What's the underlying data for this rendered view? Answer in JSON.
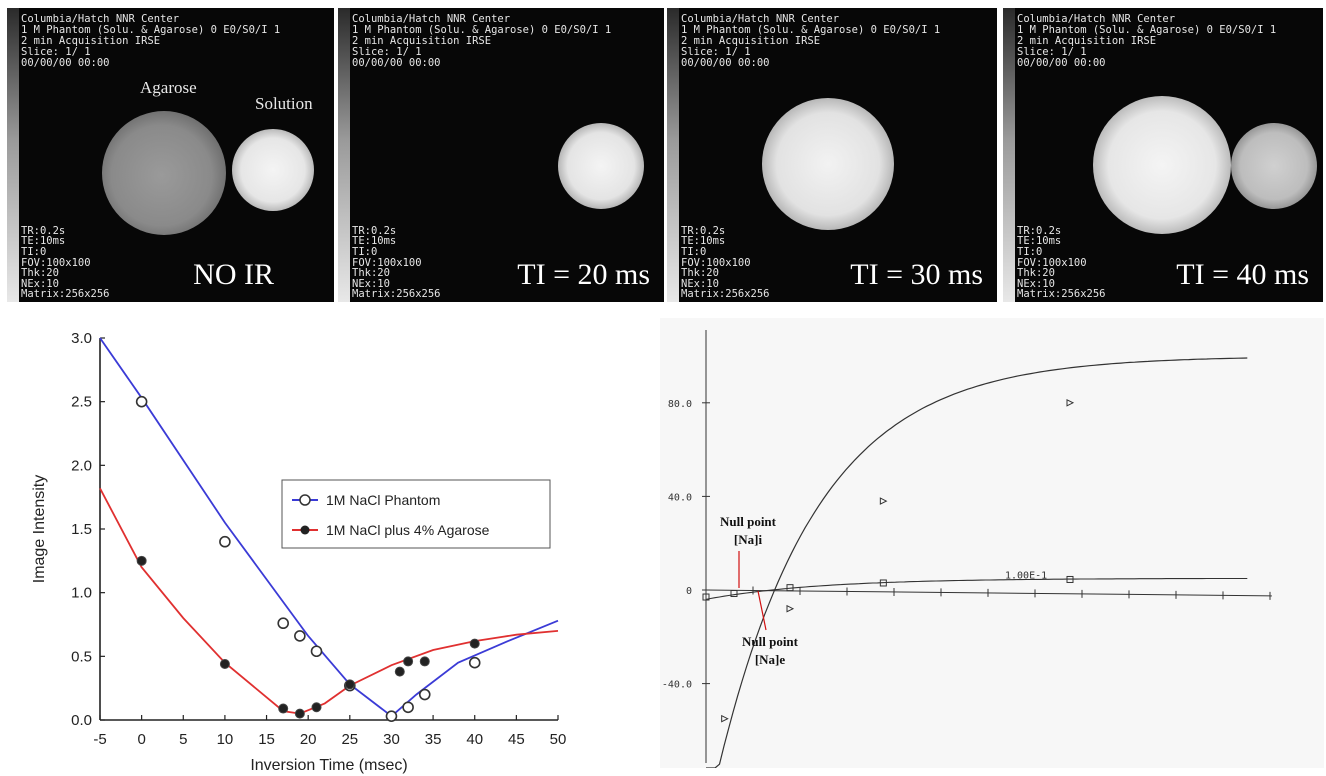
{
  "panels": [
    {
      "header": [
        "Columbia/Hatch NNR Center",
        "1 M Phantom (Solu. & Agarose) 0 E0/S0/I 1",
        "2 min Acquisition IRSE",
        "Slice: 1/ 1",
        "00/00/00 00:00"
      ],
      "params": [
        "TR:0.2s",
        "TE:10ms",
        "TI:0",
        "FOV:100x100",
        "Thk:20",
        "NEx:10",
        "Matrix:256x256"
      ],
      "caption": "NO IR",
      "label_agarose": "Agarose",
      "label_solution": "Solution"
    },
    {
      "header": [
        "Columbia/Hatch NNR Center",
        "1 M Phantom (Solu. & Agarose) 0 E0/S0/I 1",
        "2 min Acquisition IRSE",
        "Slice: 1/ 1",
        "00/00/00 00:00"
      ],
      "params": [
        "TR:0.2s",
        "TE:10ms",
        "TI:0",
        "FOV:100x100",
        "Thk:20",
        "NEx:10",
        "Matrix:256x256"
      ],
      "caption": "TI = 20 ms"
    },
    {
      "header": [
        "Columbia/Hatch NNR Center",
        "1 M Phantom (Solu. & Agarose) 0 E0/S0/I 1",
        "2 min Acquisition IRSE",
        "Slice: 1/ 1",
        "00/00/00 00:00"
      ],
      "params": [
        "TR:0.2s",
        "TE:10ms",
        "TI:0",
        "FOV:100x100",
        "Thk:20",
        "NEx:10",
        "Matrix:256x256"
      ],
      "caption": "TI = 30 ms"
    },
    {
      "header": [
        "Columbia/Hatch NNR Center",
        "1 M Phantom (Solu. & Agarose) 0 E0/S0/I 1",
        "2 min Acquisition IRSE",
        "Slice: 1/ 1",
        "00/00/00 00:00"
      ],
      "params": [
        "TR:0.2s",
        "TE:10ms",
        "TI:0",
        "FOV:100x100",
        "Thk:20",
        "NEx:10",
        "Matrix:256x256"
      ],
      "caption": "TI = 40 ms"
    }
  ],
  "chart_data": [
    {
      "type": "line",
      "title": "",
      "xlabel": "Inversion Time (msec)",
      "ylabel": "Image Intensity",
      "xlim": [
        -5,
        50
      ],
      "ylim": [
        0,
        3.0
      ],
      "xticks": [
        "-5",
        "0",
        "5",
        "10",
        "15",
        "20",
        "25",
        "30",
        "35",
        "40",
        "45",
        "50"
      ],
      "yticks": [
        "0.0",
        "0.5",
        "1.0",
        "1.5",
        "2.0",
        "2.5",
        "3.0"
      ],
      "legend_position": "center-right",
      "series": [
        {
          "name": "1M NaCl Phantom",
          "color": "#3b3bd6",
          "marker": "open-circle",
          "points": [
            [
              0,
              2.5
            ],
            [
              10,
              1.4
            ],
            [
              17,
              0.76
            ],
            [
              19,
              0.66
            ],
            [
              21,
              0.54
            ],
            [
              25,
              0.27
            ],
            [
              30,
              0.03
            ],
            [
              32,
              0.1
            ],
            [
              34,
              0.2
            ],
            [
              40,
              0.45
            ]
          ],
          "curve": [
            [
              -5,
              3.0
            ],
            [
              0,
              2.53
            ],
            [
              10,
              1.55
            ],
            [
              20,
              0.66
            ],
            [
              25,
              0.28
            ],
            [
              30,
              0.03
            ],
            [
              33,
              0.2
            ],
            [
              38,
              0.45
            ],
            [
              44,
              0.62
            ],
            [
              50,
              0.78
            ]
          ]
        },
        {
          "name": "1M NaCl plus 4% Agarose",
          "color": "#e03030",
          "marker": "filled-circle",
          "points": [
            [
              0,
              1.25
            ],
            [
              10,
              0.44
            ],
            [
              17,
              0.09
            ],
            [
              19,
              0.05
            ],
            [
              21,
              0.1
            ],
            [
              25,
              0.28
            ],
            [
              31,
              0.38
            ],
            [
              32,
              0.46
            ],
            [
              34,
              0.46
            ],
            [
              40,
              0.6
            ]
          ],
          "curve": [
            [
              -5,
              1.82
            ],
            [
              0,
              1.2
            ],
            [
              5,
              0.8
            ],
            [
              10,
              0.45
            ],
            [
              17,
              0.07
            ],
            [
              19,
              0.05
            ],
            [
              22,
              0.13
            ],
            [
              25,
              0.27
            ],
            [
              30,
              0.43
            ],
            [
              35,
              0.55
            ],
            [
              40,
              0.62
            ],
            [
              45,
              0.67
            ],
            [
              50,
              0.7
            ]
          ]
        }
      ]
    },
    {
      "type": "line",
      "title": "",
      "xlabel": "",
      "ylabel": "",
      "ylim": [
        -70,
        100
      ],
      "yticks": [
        "80.0",
        "40.0",
        "0",
        "-40.0"
      ],
      "axis_annotation": "1.00E-1",
      "annotations": [
        {
          "text": [
            "Null point",
            "[Na]i"
          ],
          "color": "#d01010"
        },
        {
          "text": [
            "Null point",
            "[Na]e"
          ],
          "color": "#d01010"
        }
      ],
      "series": [
        {
          "marker": "triangle",
          "points": [
            [
              0.01,
              -55
            ],
            [
              0.045,
              -8
            ],
            [
              0.095,
              38
            ],
            [
              0.195,
              80
            ]
          ],
          "curve": "1 - 2*exp(-t/0.05)"
        },
        {
          "marker": "square",
          "points": [
            [
              0.0,
              -3
            ],
            [
              0.015,
              -1.5
            ],
            [
              0.045,
              1
            ],
            [
              0.095,
              3
            ],
            [
              0.195,
              4.5
            ]
          ],
          "curve": "small recovery"
        }
      ]
    }
  ]
}
